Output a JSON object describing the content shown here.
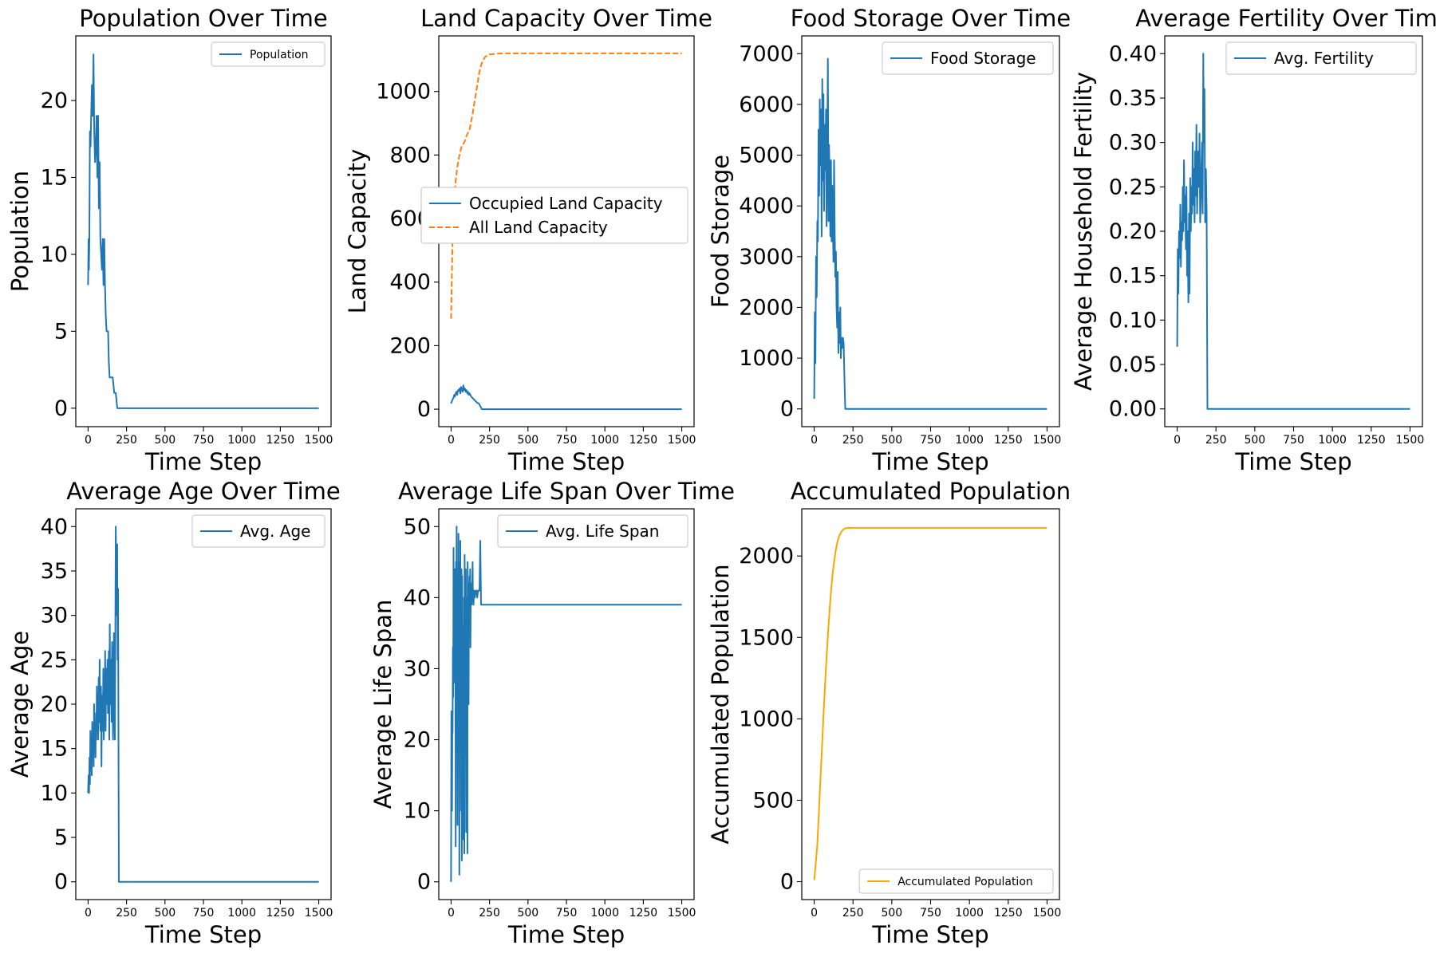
{
  "chart_data": [
    {
      "type": "line",
      "title": "Population Over Time",
      "xlabel": "Time Step",
      "ylabel": "Population",
      "xlim": [
        -80,
        1580
      ],
      "ylim": [
        -1.2,
        24.2
      ],
      "xticks": [
        0,
        250,
        500,
        750,
        1000,
        1250,
        1500
      ],
      "yticks": [
        0,
        5,
        10,
        15,
        20
      ],
      "legend": "upper right",
      "legend_size": "small",
      "series": [
        {
          "name": "Population",
          "color": "#1f77b4",
          "style": "solid",
          "x": [
            0,
            3,
            5,
            8,
            12,
            16,
            20,
            25,
            30,
            35,
            40,
            45,
            50,
            55,
            60,
            65,
            70,
            75,
            80,
            85,
            90,
            95,
            100,
            105,
            110,
            115,
            120,
            125,
            130,
            135,
            140,
            150,
            160,
            170,
            180,
            190,
            200,
            1500
          ],
          "y": [
            8,
            11,
            9,
            11,
            18,
            17,
            19,
            21,
            19,
            23,
            18,
            16,
            17,
            19,
            15,
            19,
            13,
            16,
            11,
            10,
            9,
            11,
            8,
            11,
            8,
            6,
            5,
            5,
            5,
            3,
            2,
            2,
            2,
            1,
            1,
            0,
            0,
            0
          ]
        }
      ]
    },
    {
      "type": "line",
      "title": "Land Capacity Over Time",
      "xlabel": "Time Step",
      "ylabel": "Land Capacity",
      "xlim": [
        -80,
        1580
      ],
      "ylim": [
        -55,
        1175
      ],
      "xticks": [
        0,
        250,
        500,
        750,
        1000,
        1250,
        1500
      ],
      "yticks": [
        0,
        200,
        400,
        600,
        800,
        1000
      ],
      "legend": "center right",
      "legend_size": "large",
      "series": [
        {
          "name": "Occupied Land Capacity",
          "color": "#1f77b4",
          "style": "solid",
          "x": [
            0,
            5,
            10,
            15,
            20,
            25,
            30,
            35,
            40,
            45,
            50,
            55,
            60,
            65,
            70,
            75,
            80,
            85,
            90,
            95,
            100,
            105,
            110,
            115,
            120,
            130,
            140,
            150,
            160,
            170,
            180,
            190,
            200,
            1500
          ],
          "y": [
            18,
            25,
            30,
            35,
            45,
            40,
            50,
            55,
            45,
            60,
            58,
            65,
            50,
            70,
            60,
            55,
            75,
            60,
            65,
            55,
            60,
            50,
            55,
            45,
            50,
            40,
            35,
            30,
            25,
            20,
            18,
            10,
            0,
            0
          ]
        },
        {
          "name": "All Land Capacity",
          "color": "#ff7f0e",
          "style": "dashed",
          "x": [
            0,
            5,
            10,
            20,
            30,
            40,
            50,
            60,
            70,
            80,
            90,
            100,
            110,
            120,
            130,
            140,
            150,
            160,
            170,
            180,
            190,
            200,
            210,
            220,
            230,
            240,
            250,
            275,
            300,
            350,
            400,
            500,
            1500
          ],
          "y": [
            285,
            420,
            540,
            650,
            720,
            760,
            790,
            810,
            830,
            835,
            845,
            860,
            870,
            880,
            905,
            930,
            960,
            990,
            1020,
            1050,
            1075,
            1090,
            1100,
            1108,
            1112,
            1115,
            1117,
            1118,
            1119,
            1120,
            1120,
            1120,
            1120
          ]
        }
      ]
    },
    {
      "type": "line",
      "title": "Food Storage Over Time",
      "xlabel": "Time Step",
      "ylabel": "Food Storage",
      "xlim": [
        -80,
        1580
      ],
      "ylim": [
        -350,
        7350
      ],
      "xticks": [
        0,
        250,
        500,
        750,
        1000,
        1250,
        1500
      ],
      "yticks": [
        0,
        1000,
        2000,
        3000,
        4000,
        5000,
        6000,
        7000
      ],
      "legend": "upper right",
      "legend_size": "large",
      "series": [
        {
          "name": "Food Storage",
          "color": "#1f77b4",
          "style": "solid",
          "x": [
            0,
            4,
            8,
            12,
            16,
            20,
            24,
            28,
            32,
            36,
            40,
            44,
            48,
            52,
            56,
            60,
            64,
            68,
            72,
            76,
            80,
            84,
            88,
            92,
            96,
            100,
            104,
            108,
            112,
            116,
            120,
            124,
            128,
            132,
            136,
            140,
            144,
            148,
            152,
            156,
            160,
            164,
            168,
            172,
            176,
            180,
            185,
            190,
            195,
            200,
            1500
          ],
          "y": [
            200,
            1900,
            900,
            3000,
            2200,
            3700,
            3300,
            5500,
            4200,
            6100,
            4800,
            5900,
            3400,
            6500,
            4500,
            6200,
            3900,
            5600,
            4700,
            5900,
            3600,
            4900,
            6900,
            3700,
            5200,
            4400,
            3400,
            4900,
            3300,
            4400,
            3800,
            2900,
            4900,
            3500,
            2600,
            3100,
            2000,
            1600,
            2700,
            1100,
            1900,
            1300,
            2000,
            1000,
            1400,
            1200,
            1400,
            1300,
            600,
            0,
            0
          ]
        }
      ]
    },
    {
      "type": "line",
      "title": "Average Fertility Over Time",
      "xlabel": "Time Step",
      "ylabel": "Average Household Fertility",
      "xlim": [
        -80,
        1580
      ],
      "ylim": [
        -0.02,
        0.42
      ],
      "xticks": [
        0,
        250,
        500,
        750,
        1000,
        1250,
        1500
      ],
      "yticks": [
        0.0,
        0.05,
        0.1,
        0.15,
        0.2,
        0.25,
        0.3,
        0.35,
        0.4
      ],
      "ytick_labels": [
        "0.00",
        "0.05",
        "0.10",
        "0.15",
        "0.20",
        "0.25",
        "0.30",
        "0.35",
        "0.40"
      ],
      "legend": "upper right",
      "legend_size": "large",
      "series": [
        {
          "name": "Avg. Fertility",
          "color": "#1f77b4",
          "style": "solid",
          "x": [
            0,
            4,
            8,
            12,
            16,
            20,
            24,
            28,
            32,
            36,
            40,
            44,
            48,
            52,
            56,
            60,
            64,
            68,
            72,
            76,
            80,
            84,
            88,
            92,
            96,
            100,
            104,
            108,
            112,
            116,
            120,
            124,
            128,
            132,
            136,
            140,
            144,
            148,
            152,
            156,
            160,
            164,
            168,
            172,
            176,
            180,
            185,
            190,
            195,
            1500
          ],
          "y": [
            0.07,
            0.18,
            0.13,
            0.2,
            0.17,
            0.23,
            0.16,
            0.21,
            0.19,
            0.25,
            0.2,
            0.28,
            0.21,
            0.24,
            0.18,
            0.25,
            0.15,
            0.2,
            0.12,
            0.22,
            0.13,
            0.26,
            0.2,
            0.25,
            0.22,
            0.3,
            0.23,
            0.27,
            0.21,
            0.29,
            0.24,
            0.32,
            0.22,
            0.26,
            0.29,
            0.25,
            0.31,
            0.21,
            0.23,
            0.27,
            0.3,
            0.22,
            0.4,
            0.3,
            0.36,
            0.21,
            0.27,
            0.22,
            0.0,
            0.0
          ]
        }
      ]
    },
    {
      "type": "line",
      "title": "Average Age Over Time",
      "xlabel": "Time Step",
      "ylabel": "Average Age",
      "xlim": [
        -80,
        1580
      ],
      "ylim": [
        -2,
        42
      ],
      "xticks": [
        0,
        250,
        500,
        750,
        1000,
        1250,
        1500
      ],
      "yticks": [
        0,
        5,
        10,
        15,
        20,
        25,
        30,
        35,
        40
      ],
      "legend": "upper right",
      "legend_size": "large",
      "series": [
        {
          "name": "Avg. Age",
          "color": "#1f77b4",
          "style": "solid",
          "x": [
            0,
            3,
            6,
            9,
            12,
            15,
            18,
            21,
            24,
            27,
            30,
            33,
            36,
            39,
            42,
            45,
            48,
            51,
            54,
            57,
            60,
            63,
            66,
            69,
            72,
            75,
            78,
            81,
            84,
            87,
            90,
            93,
            96,
            99,
            102,
            105,
            108,
            111,
            114,
            117,
            120,
            123,
            126,
            129,
            132,
            135,
            138,
            141,
            144,
            147,
            150,
            153,
            156,
            159,
            162,
            165,
            168,
            171,
            174,
            177,
            180,
            183,
            186,
            189,
            192,
            195,
            200,
            1500
          ],
          "y": [
            10,
            12,
            10,
            14,
            11,
            17,
            13,
            15,
            12,
            18,
            14,
            16,
            13,
            20,
            15,
            17,
            14,
            19,
            16,
            22,
            17,
            21,
            16,
            23,
            18,
            25,
            19,
            17,
            22,
            13,
            21,
            18,
            17,
            24,
            16,
            20,
            18,
            26,
            17,
            24,
            21,
            20,
            25,
            19,
            22,
            26,
            16,
            29,
            20,
            25,
            23,
            18,
            27,
            20,
            16,
            21,
            28,
            22,
            16,
            26,
            40,
            35,
            30,
            38,
            25,
            33,
            0,
            0
          ]
        }
      ]
    },
    {
      "type": "line",
      "title": "Average Life Span Over Time",
      "xlabel": "Time Step",
      "ylabel": "Average Life Span",
      "xlim": [
        -80,
        1580
      ],
      "ylim": [
        -2.5,
        52.5
      ],
      "xticks": [
        0,
        250,
        500,
        750,
        1000,
        1250,
        1500
      ],
      "yticks": [
        0,
        10,
        20,
        30,
        40,
        50
      ],
      "legend": "upper right",
      "legend_size": "large",
      "series": [
        {
          "name": "Avg. Life Span",
          "color": "#1f77b4",
          "style": "solid",
          "x": [
            0,
            2,
            4,
            6,
            8,
            10,
            12,
            14,
            16,
            18,
            20,
            22,
            24,
            26,
            28,
            30,
            32,
            34,
            36,
            38,
            40,
            42,
            44,
            46,
            48,
            50,
            52,
            54,
            56,
            58,
            60,
            62,
            64,
            66,
            68,
            70,
            72,
            74,
            76,
            78,
            80,
            82,
            84,
            86,
            88,
            90,
            92,
            94,
            96,
            98,
            100,
            102,
            104,
            106,
            108,
            110,
            112,
            114,
            116,
            118,
            120,
            122,
            124,
            126,
            128,
            130,
            132,
            134,
            136,
            138,
            140,
            142,
            144,
            146,
            148,
            150,
            155,
            160,
            165,
            170,
            175,
            180,
            185,
            190,
            195,
            200,
            1500
          ],
          "y": [
            0,
            24,
            24,
            10,
            24,
            21,
            33,
            26,
            47,
            28,
            35,
            30,
            44,
            32,
            42,
            5,
            45,
            38,
            50,
            27,
            43,
            8,
            41,
            36,
            49,
            22,
            45,
            1,
            40,
            18,
            48,
            27,
            39,
            10,
            44,
            3,
            43,
            16,
            35,
            6,
            36,
            11,
            40,
            4,
            46,
            35,
            43,
            19,
            44,
            7,
            40,
            12,
            38,
            4,
            45,
            31,
            39,
            25,
            42,
            41,
            43,
            39,
            44,
            33,
            41,
            42,
            41,
            39,
            40,
            42,
            45,
            40,
            41,
            39,
            41,
            41,
            40,
            41,
            41,
            40,
            41,
            41,
            41,
            48,
            39,
            39,
            39
          ]
        }
      ]
    },
    {
      "type": "line",
      "title": "Accumulated Population",
      "xlabel": "Time Step",
      "ylabel": "Accumulated Population",
      "xlim": [
        -80,
        1580
      ],
      "ylim": [
        -110,
        2290
      ],
      "xticks": [
        0,
        250,
        500,
        750,
        1000,
        1250,
        1500
      ],
      "yticks": [
        0,
        500,
        1000,
        1500,
        2000
      ],
      "legend": "lower right",
      "legend_size": "small",
      "series": [
        {
          "name": "Accumulated Population",
          "color": "#ffa500",
          "style": "solid",
          "x": [
            0,
            10,
            20,
            30,
            40,
            50,
            60,
            70,
            80,
            90,
            100,
            110,
            120,
            130,
            140,
            150,
            160,
            170,
            180,
            190,
            200,
            210,
            220,
            1500
          ],
          "y": [
            10,
            110,
            230,
            420,
            620,
            820,
            1020,
            1210,
            1380,
            1540,
            1680,
            1800,
            1900,
            1980,
            2040,
            2090,
            2120,
            2140,
            2155,
            2165,
            2170,
            2172,
            2173,
            2173
          ]
        }
      ]
    }
  ]
}
